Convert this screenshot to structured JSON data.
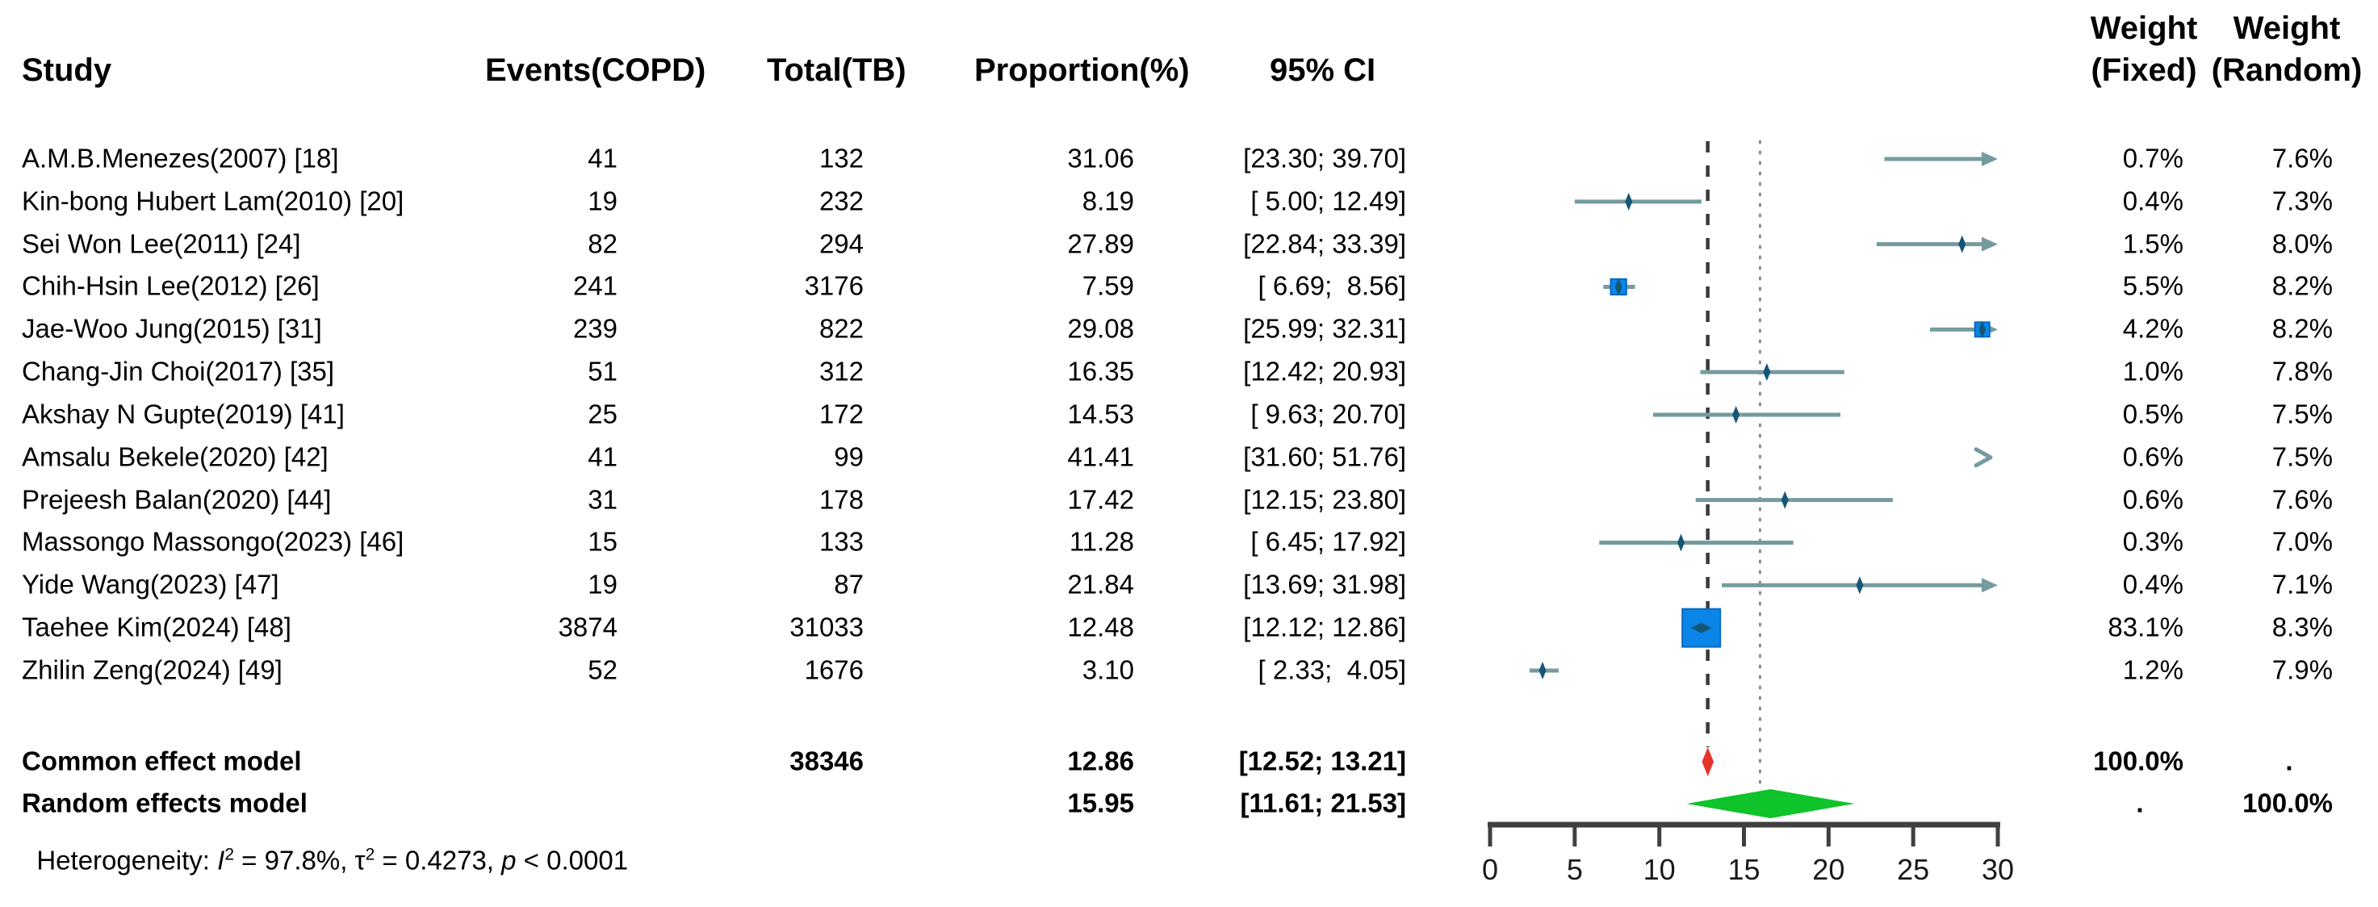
{
  "columns": {
    "study": "Study",
    "events": "Events(COPD)",
    "total": "Total(TB)",
    "proportion": "Proportion(%)",
    "ci": "95% CI",
    "weight_fixed_line1": "Weight",
    "weight_fixed_line2": "(Fixed)",
    "weight_random_line1": "Weight",
    "weight_random_line2": "(Random)"
  },
  "chart_data": {
    "type": "forest",
    "axis": {
      "ticks": [
        "0",
        "5",
        "10",
        "15",
        "20",
        "25",
        "30"
      ],
      "tick_values": [
        0,
        5,
        10,
        15,
        20,
        25,
        30
      ],
      "xlim": [
        0,
        30
      ]
    },
    "reference_lines": {
      "common_effect_line": 12.86,
      "random_effects_line": 15.95
    },
    "colors": {
      "ci_line": "#759b9e",
      "point_marker": "#155677",
      "square_fill": "#0b86e8",
      "square_stroke": "#0969bf",
      "common_diamond": "#e63329",
      "random_diamond": "#0fc32a",
      "dashed_line": "#3a3a3a",
      "dotted_line": "#8a8a8a",
      "axis": "#404040"
    },
    "studies": [
      {
        "label": "A.M.B.Menezes(2007) [18]",
        "events": "41",
        "total": "132",
        "proportion": "31.06",
        "prop_num": 31.06,
        "ci_lo": 23.3,
        "ci_hi": 39.7,
        "ci_text": "[23.30; 39.70]",
        "weight_fixed": "0.7%",
        "weight_random": "7.6%"
      },
      {
        "label": "Kin-bong Hubert Lam(2010) [20]",
        "events": "19",
        "total": "232",
        "proportion": "8.19",
        "prop_num": 8.19,
        "ci_lo": 5.0,
        "ci_hi": 12.49,
        "ci_text": "[ 5.00; 12.49]",
        "weight_fixed": "0.4%",
        "weight_random": "7.3%"
      },
      {
        "label": "Sei Won Lee(2011) [24]",
        "events": "82",
        "total": "294",
        "proportion": "27.89",
        "prop_num": 27.89,
        "ci_lo": 22.84,
        "ci_hi": 33.39,
        "ci_text": "[22.84; 33.39]",
        "weight_fixed": "1.5%",
        "weight_random": "8.0%"
      },
      {
        "label": "Chih-Hsin Lee(2012) [26]",
        "events": "241",
        "total": "3176",
        "proportion": "7.59",
        "prop_num": 7.59,
        "ci_lo": 6.69,
        "ci_hi": 8.56,
        "ci_text": "[ 6.69;  8.56]",
        "weight_fixed": "5.5%",
        "weight_random": "8.2%"
      },
      {
        "label": "Jae-Woo Jung(2015) [31]",
        "events": "239",
        "total": "822",
        "proportion": "29.08",
        "prop_num": 29.08,
        "ci_lo": 25.99,
        "ci_hi": 32.31,
        "ci_text": "[25.99; 32.31]",
        "weight_fixed": "4.2%",
        "weight_random": "8.2%"
      },
      {
        "label": "Chang-Jin Choi(2017) [35]",
        "events": "51",
        "total": "312",
        "proportion": "16.35",
        "prop_num": 16.35,
        "ci_lo": 12.42,
        "ci_hi": 20.93,
        "ci_text": "[12.42; 20.93]",
        "weight_fixed": "1.0%",
        "weight_random": "7.8%"
      },
      {
        "label": "Akshay N Gupte(2019) [41]",
        "events": "25",
        "total": "172",
        "proportion": "14.53",
        "prop_num": 14.53,
        "ci_lo": 9.63,
        "ci_hi": 20.7,
        "ci_text": "[ 9.63; 20.70]",
        "weight_fixed": "0.5%",
        "weight_random": "7.5%"
      },
      {
        "label": "Amsalu Bekele(2020) [42]",
        "events": "41",
        "total": "99",
        "proportion": "41.41",
        "prop_num": 41.41,
        "ci_lo": 31.6,
        "ci_hi": 51.76,
        "ci_text": "[31.60; 51.76]",
        "weight_fixed": "0.6%",
        "weight_random": "7.5%"
      },
      {
        "label": "Prejeesh Balan(2020) [44]",
        "events": "31",
        "total": "178",
        "proportion": "17.42",
        "prop_num": 17.42,
        "ci_lo": 12.15,
        "ci_hi": 23.8,
        "ci_text": "[12.15; 23.80]",
        "weight_fixed": "0.6%",
        "weight_random": "7.6%"
      },
      {
        "label": "Massongo Massongo(2023) [46]",
        "events": "15",
        "total": "133",
        "proportion": "11.28",
        "prop_num": 11.28,
        "ci_lo": 6.45,
        "ci_hi": 17.92,
        "ci_text": "[ 6.45; 17.92]",
        "weight_fixed": "0.3%",
        "weight_random": "7.0%"
      },
      {
        "label": "Yide Wang(2023) [47]",
        "events": "19",
        "total": "87",
        "proportion": "21.84",
        "prop_num": 21.84,
        "ci_lo": 13.69,
        "ci_hi": 31.98,
        "ci_text": "[13.69; 31.98]",
        "weight_fixed": "0.4%",
        "weight_random": "7.1%"
      },
      {
        "label": "Taehee Kim(2024) [48]",
        "events": "3874",
        "total": "31033",
        "proportion": "12.48",
        "prop_num": 12.48,
        "ci_lo": 12.12,
        "ci_hi": 12.86,
        "ci_text": "[12.12; 12.86]",
        "weight_fixed": "83.1%",
        "weight_random": "8.3%"
      },
      {
        "label": "Zhilin Zeng(2024) [49]",
        "events": "52",
        "total": "1676",
        "proportion": "3.10",
        "prop_num": 3.1,
        "ci_lo": 2.33,
        "ci_hi": 4.05,
        "ci_text": "[ 2.33;  4.05]",
        "weight_fixed": "1.2%",
        "weight_random": "7.9%"
      }
    ],
    "common_effect": {
      "label": "Common effect model",
      "total": "38346",
      "proportion": "12.86",
      "prop_num": 12.86,
      "ci_lo": 12.52,
      "ci_hi": 13.21,
      "ci_text": "[12.52; 13.21]",
      "weight_fixed": "100.0%",
      "weight_random": "."
    },
    "random_effects": {
      "label": "Random effects model",
      "proportion": "15.95",
      "prop_num": 15.95,
      "ci_lo": 11.61,
      "ci_hi": 21.53,
      "ci_text": "[11.61; 21.53]",
      "weight_fixed": ".",
      "weight_random": "100.0%"
    },
    "heterogeneity": {
      "prefix": "Heterogeneity: ",
      "i_sym": "I",
      "i_sup": "2",
      "i_val": " = 97.8%, ",
      "tau_sym": "τ",
      "tau_sup": "2",
      "tau_val": " = 0.4273, ",
      "p_sym": "p",
      "p_val": " < 0.0001"
    }
  }
}
